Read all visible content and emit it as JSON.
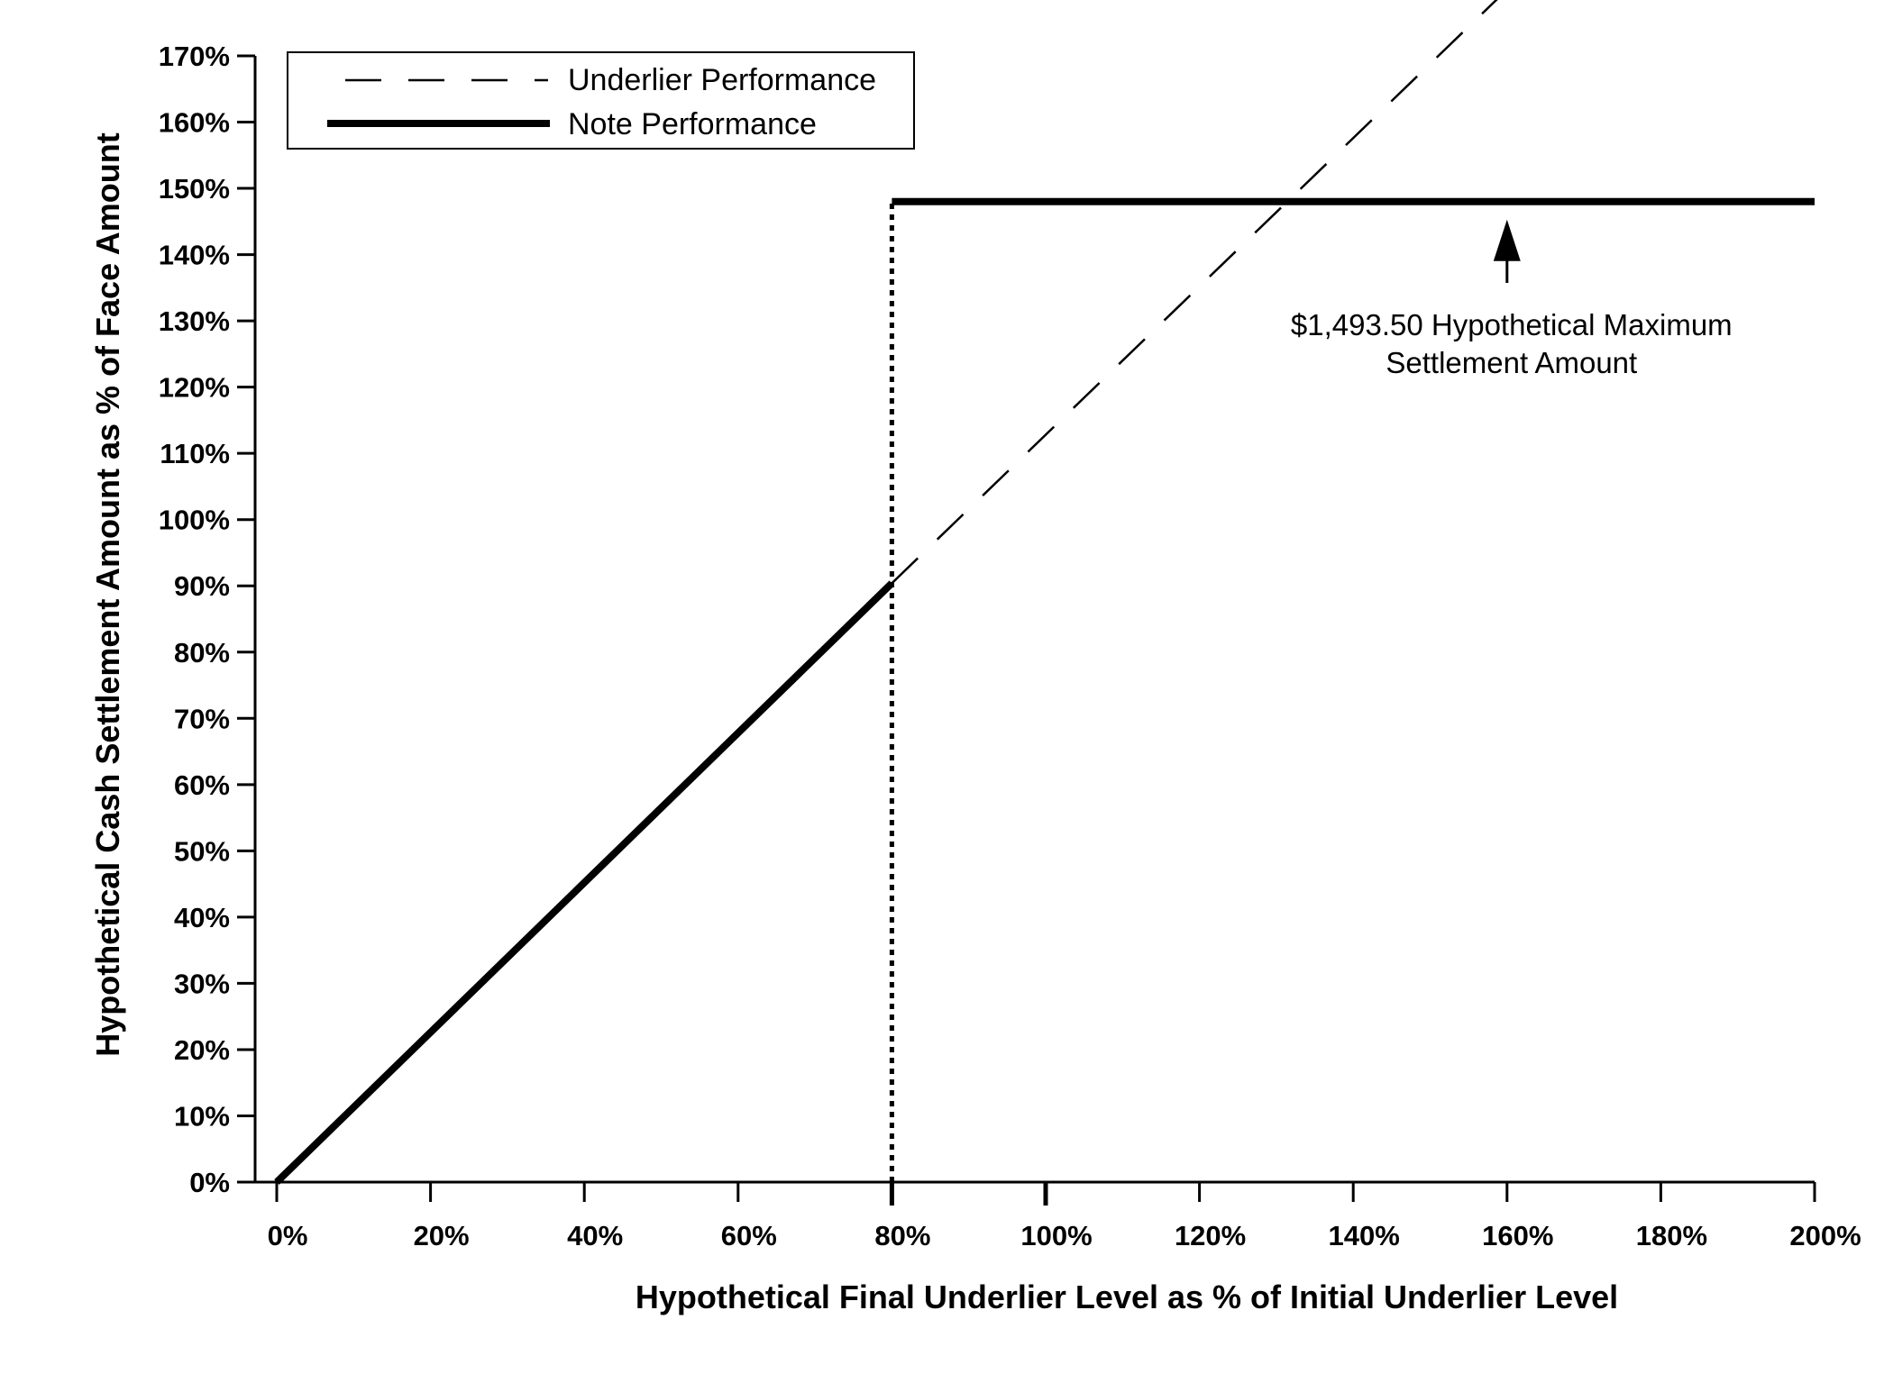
{
  "chart_data": {
    "type": "line",
    "title": "",
    "xlabel": "Hypothetical Final Underlier Level as % of Initial Underlier Level",
    "ylabel": "Hypothetical Cash Settlement Amount as % of Face Amount",
    "xlim": [
      0,
      200
    ],
    "ylim": [
      0,
      170
    ],
    "x_ticks": [
      0,
      20,
      40,
      60,
      80,
      100,
      120,
      140,
      160,
      180,
      200
    ],
    "x_tick_labels": [
      "0%",
      "20%",
      "40%",
      "60%",
      "80%",
      "100%",
      "120%",
      "140%",
      "160%",
      "180%",
      "200%"
    ],
    "y_ticks": [
      0,
      10,
      20,
      30,
      40,
      50,
      60,
      70,
      80,
      90,
      100,
      110,
      120,
      130,
      140,
      150,
      160,
      170
    ],
    "y_tick_labels": [
      "0%",
      "10%",
      "20%",
      "30%",
      "40%",
      "50%",
      "60%",
      "70%",
      "80%",
      "90%",
      "100%",
      "110%",
      "120%",
      "130%",
      "140%",
      "150%",
      "160%",
      "170%"
    ],
    "grid": false,
    "legend": "top-left",
    "series": [
      {
        "name": "Underlier Performance",
        "style": "dashed",
        "x": [
          80,
          160
        ],
        "y": [
          90.4,
          180
        ]
      },
      {
        "name": "Note Performance",
        "style": "solid-thick",
        "segments": [
          {
            "x": [
              0,
              80
            ],
            "y": [
              0,
              90.4
            ]
          },
          {
            "x": [
              80,
              200
            ],
            "y": [
              148,
              148
            ]
          }
        ]
      }
    ],
    "reference_line": {
      "style": "dotted",
      "x": 80,
      "y": [
        0,
        148
      ]
    },
    "annotation": {
      "lines": [
        "$1,493.50 Hypothetical Maximum",
        "Settlement Amount"
      ],
      "arrow_x": 160,
      "arrow_tip_y": 148,
      "arrow_tail_y": 136
    },
    "colors": {
      "line": "#000000",
      "background": "#ffffff"
    }
  }
}
